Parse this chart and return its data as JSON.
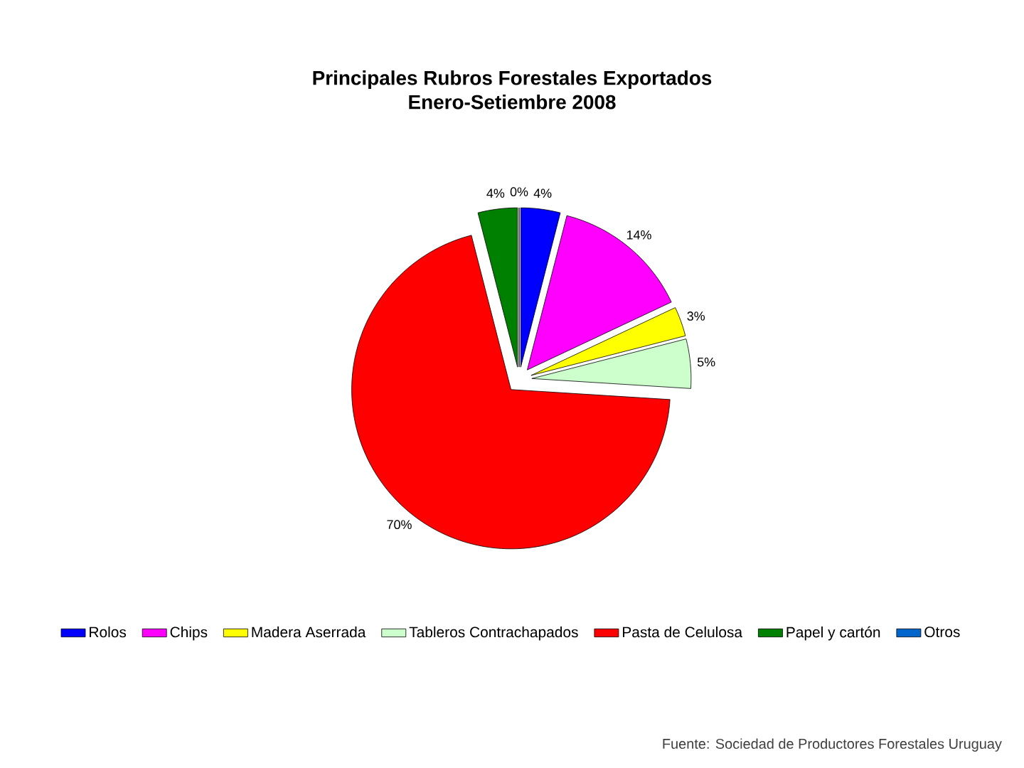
{
  "chart_data": {
    "type": "pie",
    "title": "Principales Rubros Forestales Exportados",
    "subtitle": "Enero-Setiembre 2008",
    "categories": [
      "Rolos",
      "Chips",
      "Madera Aserrada",
      "Tableros Contrachapados",
      "Pasta de Celulosa",
      "Papel y cartón",
      "Otros"
    ],
    "values": [
      4,
      14,
      3,
      5,
      70,
      4,
      0
    ],
    "colors": [
      "#0000ff",
      "#ff00ff",
      "#ffff00",
      "#ccffcc",
      "#ff0000",
      "#008000",
      "#0066cc"
    ],
    "value_labels": [
      "4%",
      "14%",
      "3%",
      "5%",
      "70%",
      "4%",
      "0%"
    ],
    "legend": "bottom",
    "annotations": [
      "Fuente: Sociedad de Productores Forestales Uruguay"
    ]
  }
}
